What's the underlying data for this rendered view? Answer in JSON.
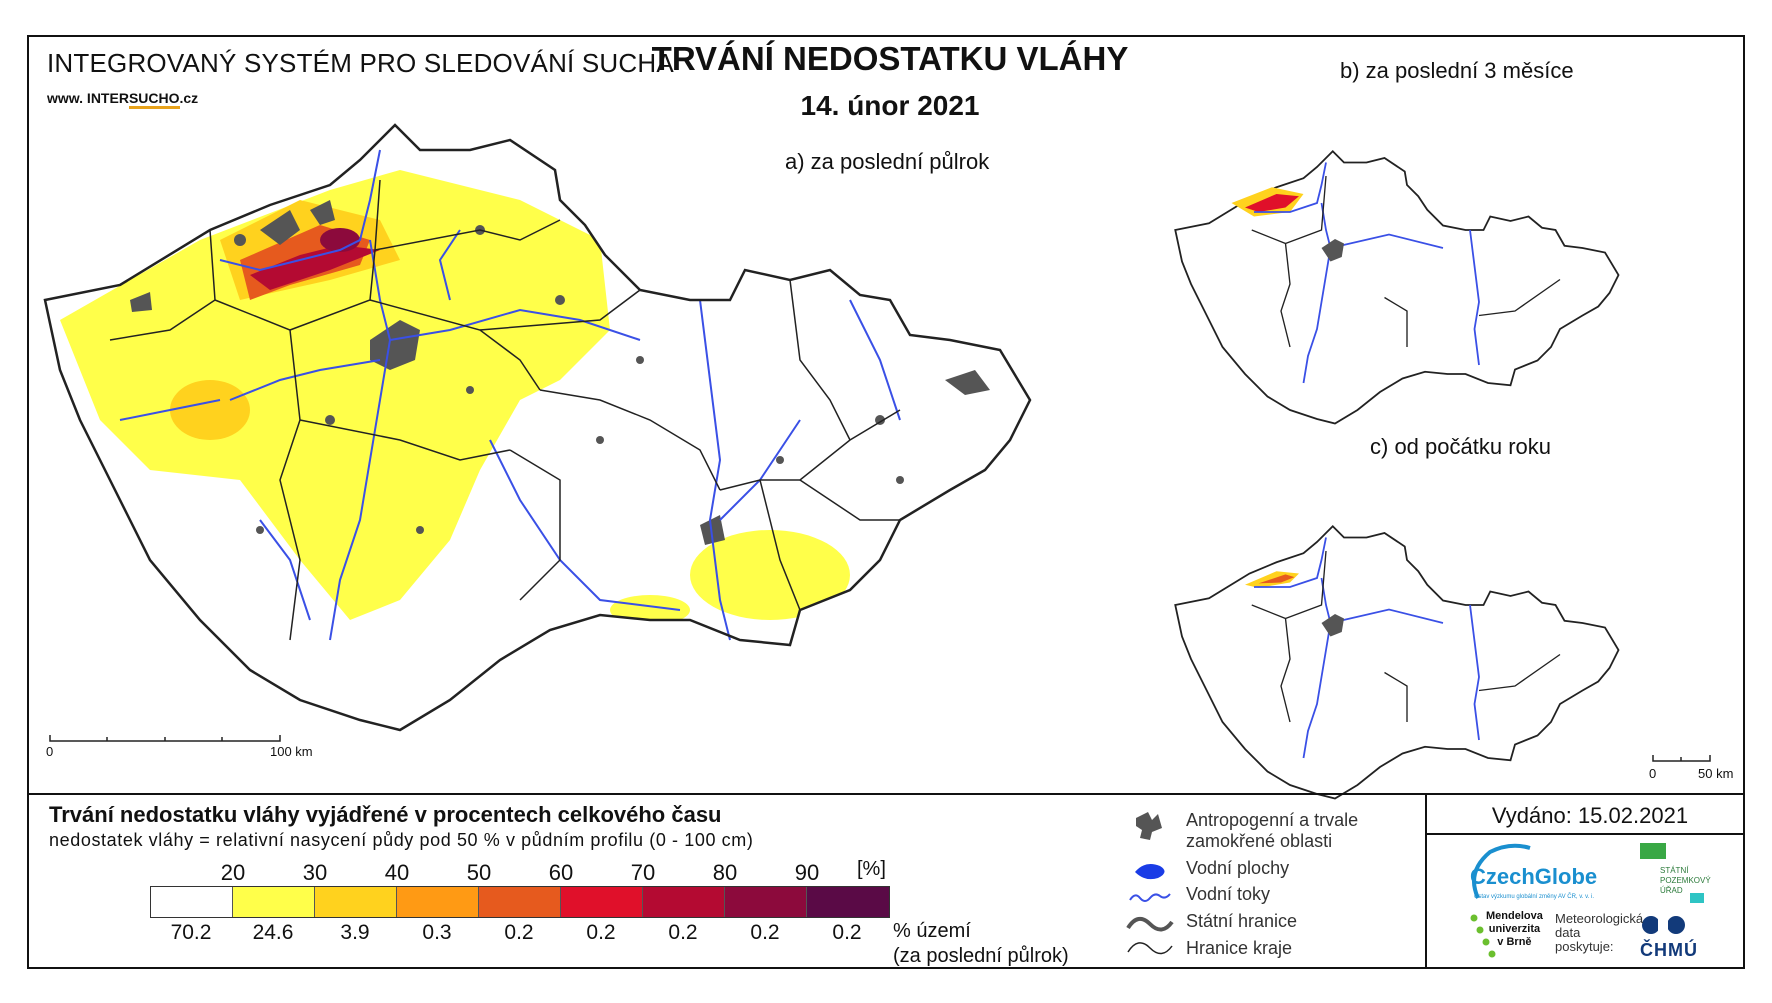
{
  "header": {
    "system_title": "INTEGROVANÝ SYSTÉM PRO SLEDOVÁNÍ SUCHA",
    "website_prefix": "www. INTER",
    "website_accent": "SUCHO",
    "website_suffix": ".cz",
    "main_title": "TRVÁNÍ NEDOSTATKU VLÁHY",
    "date": "14. únor 2021"
  },
  "maps": {
    "a_label": "a) za poslední půlrok",
    "b_label": "b) za poslední 3 měsíce",
    "c_label": "c) od počátku roku",
    "scale_main_start": "0",
    "scale_main_end": "100 km",
    "scale_small_start": "0",
    "scale_small_end": "50 km"
  },
  "legend": {
    "title": "Trvání nedostatku vláhy vyjádřené v procentech celkového času",
    "subtitle": "nedostatek vláhy = relativní nasycení půdy pod 50 % v půdním profilu (0 - 100 cm)",
    "thresholds": [
      "20",
      "30",
      "40",
      "50",
      "60",
      "70",
      "80",
      "90"
    ],
    "unit": "[%]",
    "colors": [
      "#ffffff",
      "#ffff4a",
      "#ffd21e",
      "#ff9a14",
      "#e65a1e",
      "#e0102a",
      "#b40a32",
      "#8c0a3c",
      "#5a0a46"
    ],
    "area_percent": [
      "70.2",
      "24.6",
      "3.9",
      "0.3",
      "0.2",
      "0.2",
      "0.2",
      "0.2",
      "0.2"
    ],
    "area_label_1": "% území",
    "area_label_2": "(za poslední půlrok)",
    "symbols": {
      "anthropogenic_1": "Antropogenní a trvale",
      "anthropogenic_2": "zamokřené oblasti",
      "water_bodies": "Vodní plochy",
      "water_streams": "Vodní toky",
      "state_border": "Státní hranice",
      "region_border": "Hranice kraje"
    }
  },
  "footer": {
    "issued": "Vydáno: 15.02.2021",
    "czechglobe": "CzechGlobe",
    "czechglobe_sub": "Ústav výzkumu globální změny AV ČR, v. v. i.",
    "spu_1": "STÁTNÍ",
    "spu_2": "POZEMKOVÝ",
    "spu_3": "ÚŘAD",
    "mendel_1": "Mendelova",
    "mendel_2": "univerzita",
    "mendel_3": "v Brně",
    "met_1": "Meteorologická",
    "met_2": "data",
    "met_3": "poskytuje:",
    "chmu": "ČHMÚ"
  },
  "colors": {
    "water": "#3a50e6",
    "urban": "#555555",
    "border": "#222222"
  }
}
